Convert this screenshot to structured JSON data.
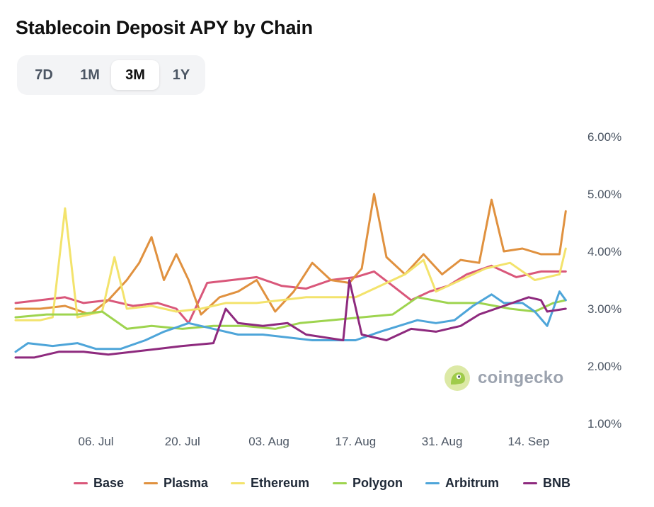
{
  "title": "Stablecoin Deposit APY by Chain",
  "range_tabs": [
    {
      "label": "7D",
      "active": false
    },
    {
      "label": "1M",
      "active": false
    },
    {
      "label": "3M",
      "active": true
    },
    {
      "label": "1Y",
      "active": false
    }
  ],
  "watermark": {
    "text": "coingecko",
    "logo_icon": "gecko-logo-icon"
  },
  "chart_data": {
    "type": "line",
    "title": "Stablecoin Deposit APY by Chain",
    "xlabel": "",
    "ylabel": "",
    "x_range": [
      "2025-06-23",
      "2025-09-21"
    ],
    "ylim": [
      1.0,
      6.0
    ],
    "y_ticks": [
      "1.00%",
      "2.00%",
      "3.00%",
      "4.00%",
      "5.00%",
      "6.00%"
    ],
    "x_ticks": [
      {
        "label": "06. Jul",
        "date": "2025-07-06"
      },
      {
        "label": "20. Jul",
        "date": "2025-07-20"
      },
      {
        "label": "03. Aug",
        "date": "2025-08-03"
      },
      {
        "label": "17. Aug",
        "date": "2025-08-17"
      },
      {
        "label": "31. Aug",
        "date": "2025-08-31"
      },
      {
        "label": "14. Sep",
        "date": "2025-09-14"
      }
    ],
    "grid": false,
    "legend": "bottom",
    "series": [
      {
        "name": "Base",
        "color": "#d9577a",
        "points": [
          [
            "2025-06-23",
            3.1
          ],
          [
            "2025-06-27",
            3.15
          ],
          [
            "2025-07-01",
            3.2
          ],
          [
            "2025-07-04",
            3.1
          ],
          [
            "2025-07-08",
            3.15
          ],
          [
            "2025-07-12",
            3.05
          ],
          [
            "2025-07-16",
            3.1
          ],
          [
            "2025-07-19",
            3.0
          ],
          [
            "2025-07-21",
            2.75
          ],
          [
            "2025-07-24",
            3.45
          ],
          [
            "2025-07-28",
            3.5
          ],
          [
            "2025-08-01",
            3.55
          ],
          [
            "2025-08-05",
            3.4
          ],
          [
            "2025-08-09",
            3.35
          ],
          [
            "2025-08-13",
            3.5
          ],
          [
            "2025-08-17",
            3.55
          ],
          [
            "2025-08-20",
            3.65
          ],
          [
            "2025-08-23",
            3.4
          ],
          [
            "2025-08-26",
            3.15
          ],
          [
            "2025-08-29",
            3.3
          ],
          [
            "2025-09-01",
            3.4
          ],
          [
            "2025-09-04",
            3.6
          ],
          [
            "2025-09-08",
            3.75
          ],
          [
            "2025-09-12",
            3.55
          ],
          [
            "2025-09-16",
            3.65
          ],
          [
            "2025-09-20",
            3.65
          ]
        ]
      },
      {
        "name": "Plasma",
        "color": "#e0913f",
        "points": [
          [
            "2025-06-23",
            3.0
          ],
          [
            "2025-06-27",
            3.0
          ],
          [
            "2025-07-01",
            3.05
          ],
          [
            "2025-07-05",
            2.9
          ],
          [
            "2025-07-08",
            3.15
          ],
          [
            "2025-07-11",
            3.5
          ],
          [
            "2025-07-13",
            3.8
          ],
          [
            "2025-07-15",
            4.25
          ],
          [
            "2025-07-17",
            3.5
          ],
          [
            "2025-07-19",
            3.95
          ],
          [
            "2025-07-21",
            3.5
          ],
          [
            "2025-07-23",
            2.9
          ],
          [
            "2025-07-26",
            3.2
          ],
          [
            "2025-07-29",
            3.3
          ],
          [
            "2025-08-01",
            3.5
          ],
          [
            "2025-08-04",
            2.95
          ],
          [
            "2025-08-07",
            3.3
          ],
          [
            "2025-08-10",
            3.8
          ],
          [
            "2025-08-13",
            3.5
          ],
          [
            "2025-08-16",
            3.45
          ],
          [
            "2025-08-18",
            3.7
          ],
          [
            "2025-08-20",
            5.0
          ],
          [
            "2025-08-22",
            3.9
          ],
          [
            "2025-08-25",
            3.6
          ],
          [
            "2025-08-28",
            3.95
          ],
          [
            "2025-08-31",
            3.6
          ],
          [
            "2025-09-03",
            3.85
          ],
          [
            "2025-09-06",
            3.8
          ],
          [
            "2025-09-08",
            4.9
          ],
          [
            "2025-09-10",
            4.0
          ],
          [
            "2025-09-13",
            4.05
          ],
          [
            "2025-09-16",
            3.95
          ],
          [
            "2025-09-19",
            3.95
          ],
          [
            "2025-09-20",
            4.7
          ]
        ]
      },
      {
        "name": "Ethereum",
        "color": "#f3e36c",
        "points": [
          [
            "2025-06-23",
            2.8
          ],
          [
            "2025-06-27",
            2.8
          ],
          [
            "2025-06-29",
            2.85
          ],
          [
            "2025-07-01",
            4.75
          ],
          [
            "2025-07-03",
            2.85
          ],
          [
            "2025-07-07",
            2.95
          ],
          [
            "2025-07-09",
            3.9
          ],
          [
            "2025-07-11",
            3.0
          ],
          [
            "2025-07-15",
            3.05
          ],
          [
            "2025-07-19",
            2.95
          ],
          [
            "2025-07-23",
            3.0
          ],
          [
            "2025-07-27",
            3.1
          ],
          [
            "2025-08-01",
            3.1
          ],
          [
            "2025-08-05",
            3.15
          ],
          [
            "2025-08-09",
            3.2
          ],
          [
            "2025-08-13",
            3.2
          ],
          [
            "2025-08-17",
            3.2
          ],
          [
            "2025-08-21",
            3.4
          ],
          [
            "2025-08-25",
            3.6
          ],
          [
            "2025-08-28",
            3.85
          ],
          [
            "2025-08-30",
            3.3
          ],
          [
            "2025-09-03",
            3.5
          ],
          [
            "2025-09-07",
            3.7
          ],
          [
            "2025-09-11",
            3.8
          ],
          [
            "2025-09-15",
            3.5
          ],
          [
            "2025-09-19",
            3.6
          ],
          [
            "2025-09-20",
            4.05
          ]
        ]
      },
      {
        "name": "Polygon",
        "color": "#9ed44f",
        "points": [
          [
            "2025-06-23",
            2.85
          ],
          [
            "2025-06-28",
            2.9
          ],
          [
            "2025-07-03",
            2.9
          ],
          [
            "2025-07-07",
            2.95
          ],
          [
            "2025-07-11",
            2.65
          ],
          [
            "2025-07-15",
            2.7
          ],
          [
            "2025-07-20",
            2.65
          ],
          [
            "2025-07-25",
            2.7
          ],
          [
            "2025-07-30",
            2.7
          ],
          [
            "2025-08-04",
            2.65
          ],
          [
            "2025-08-08",
            2.75
          ],
          [
            "2025-08-13",
            2.8
          ],
          [
            "2025-08-18",
            2.85
          ],
          [
            "2025-08-23",
            2.9
          ],
          [
            "2025-08-27",
            3.2
          ],
          [
            "2025-09-01",
            3.1
          ],
          [
            "2025-09-06",
            3.1
          ],
          [
            "2025-09-11",
            3.0
          ],
          [
            "2025-09-15",
            2.95
          ],
          [
            "2025-09-18",
            3.1
          ],
          [
            "2025-09-20",
            3.15
          ]
        ]
      },
      {
        "name": "Arbitrum",
        "color": "#4ea5d9",
        "points": [
          [
            "2025-06-23",
            2.25
          ],
          [
            "2025-06-25",
            2.4
          ],
          [
            "2025-06-29",
            2.35
          ],
          [
            "2025-07-03",
            2.4
          ],
          [
            "2025-07-06",
            2.3
          ],
          [
            "2025-07-10",
            2.3
          ],
          [
            "2025-07-14",
            2.45
          ],
          [
            "2025-07-17",
            2.6
          ],
          [
            "2025-07-21",
            2.75
          ],
          [
            "2025-07-25",
            2.65
          ],
          [
            "2025-07-29",
            2.55
          ],
          [
            "2025-08-02",
            2.55
          ],
          [
            "2025-08-06",
            2.5
          ],
          [
            "2025-08-10",
            2.45
          ],
          [
            "2025-08-14",
            2.45
          ],
          [
            "2025-08-17",
            2.45
          ],
          [
            "2025-08-21",
            2.6
          ],
          [
            "2025-08-24",
            2.7
          ],
          [
            "2025-08-27",
            2.8
          ],
          [
            "2025-08-30",
            2.75
          ],
          [
            "2025-09-02",
            2.8
          ],
          [
            "2025-09-05",
            3.05
          ],
          [
            "2025-09-08",
            3.25
          ],
          [
            "2025-09-10",
            3.1
          ],
          [
            "2025-09-13",
            3.1
          ],
          [
            "2025-09-15",
            2.95
          ],
          [
            "2025-09-17",
            2.7
          ],
          [
            "2025-09-18",
            3.0
          ],
          [
            "2025-09-19",
            3.3
          ],
          [
            "2025-09-20",
            3.15
          ]
        ]
      },
      {
        "name": "BNB",
        "color": "#8e2a7e",
        "points": [
          [
            "2025-06-23",
            2.15
          ],
          [
            "2025-06-26",
            2.15
          ],
          [
            "2025-06-30",
            2.25
          ],
          [
            "2025-07-04",
            2.25
          ],
          [
            "2025-07-08",
            2.2
          ],
          [
            "2025-07-12",
            2.25
          ],
          [
            "2025-07-16",
            2.3
          ],
          [
            "2025-07-20",
            2.35
          ],
          [
            "2025-07-25",
            2.4
          ],
          [
            "2025-07-27",
            3.0
          ],
          [
            "2025-07-29",
            2.75
          ],
          [
            "2025-08-02",
            2.7
          ],
          [
            "2025-08-06",
            2.75
          ],
          [
            "2025-08-09",
            2.55
          ],
          [
            "2025-08-12",
            2.5
          ],
          [
            "2025-08-15",
            2.45
          ],
          [
            "2025-08-16",
            3.5
          ],
          [
            "2025-08-18",
            2.55
          ],
          [
            "2025-08-22",
            2.45
          ],
          [
            "2025-08-26",
            2.65
          ],
          [
            "2025-08-30",
            2.6
          ],
          [
            "2025-09-03",
            2.7
          ],
          [
            "2025-09-06",
            2.9
          ],
          [
            "2025-09-10",
            3.05
          ],
          [
            "2025-09-14",
            3.2
          ],
          [
            "2025-09-16",
            3.15
          ],
          [
            "2025-09-17",
            2.95
          ],
          [
            "2025-09-20",
            3.0
          ]
        ]
      }
    ]
  }
}
